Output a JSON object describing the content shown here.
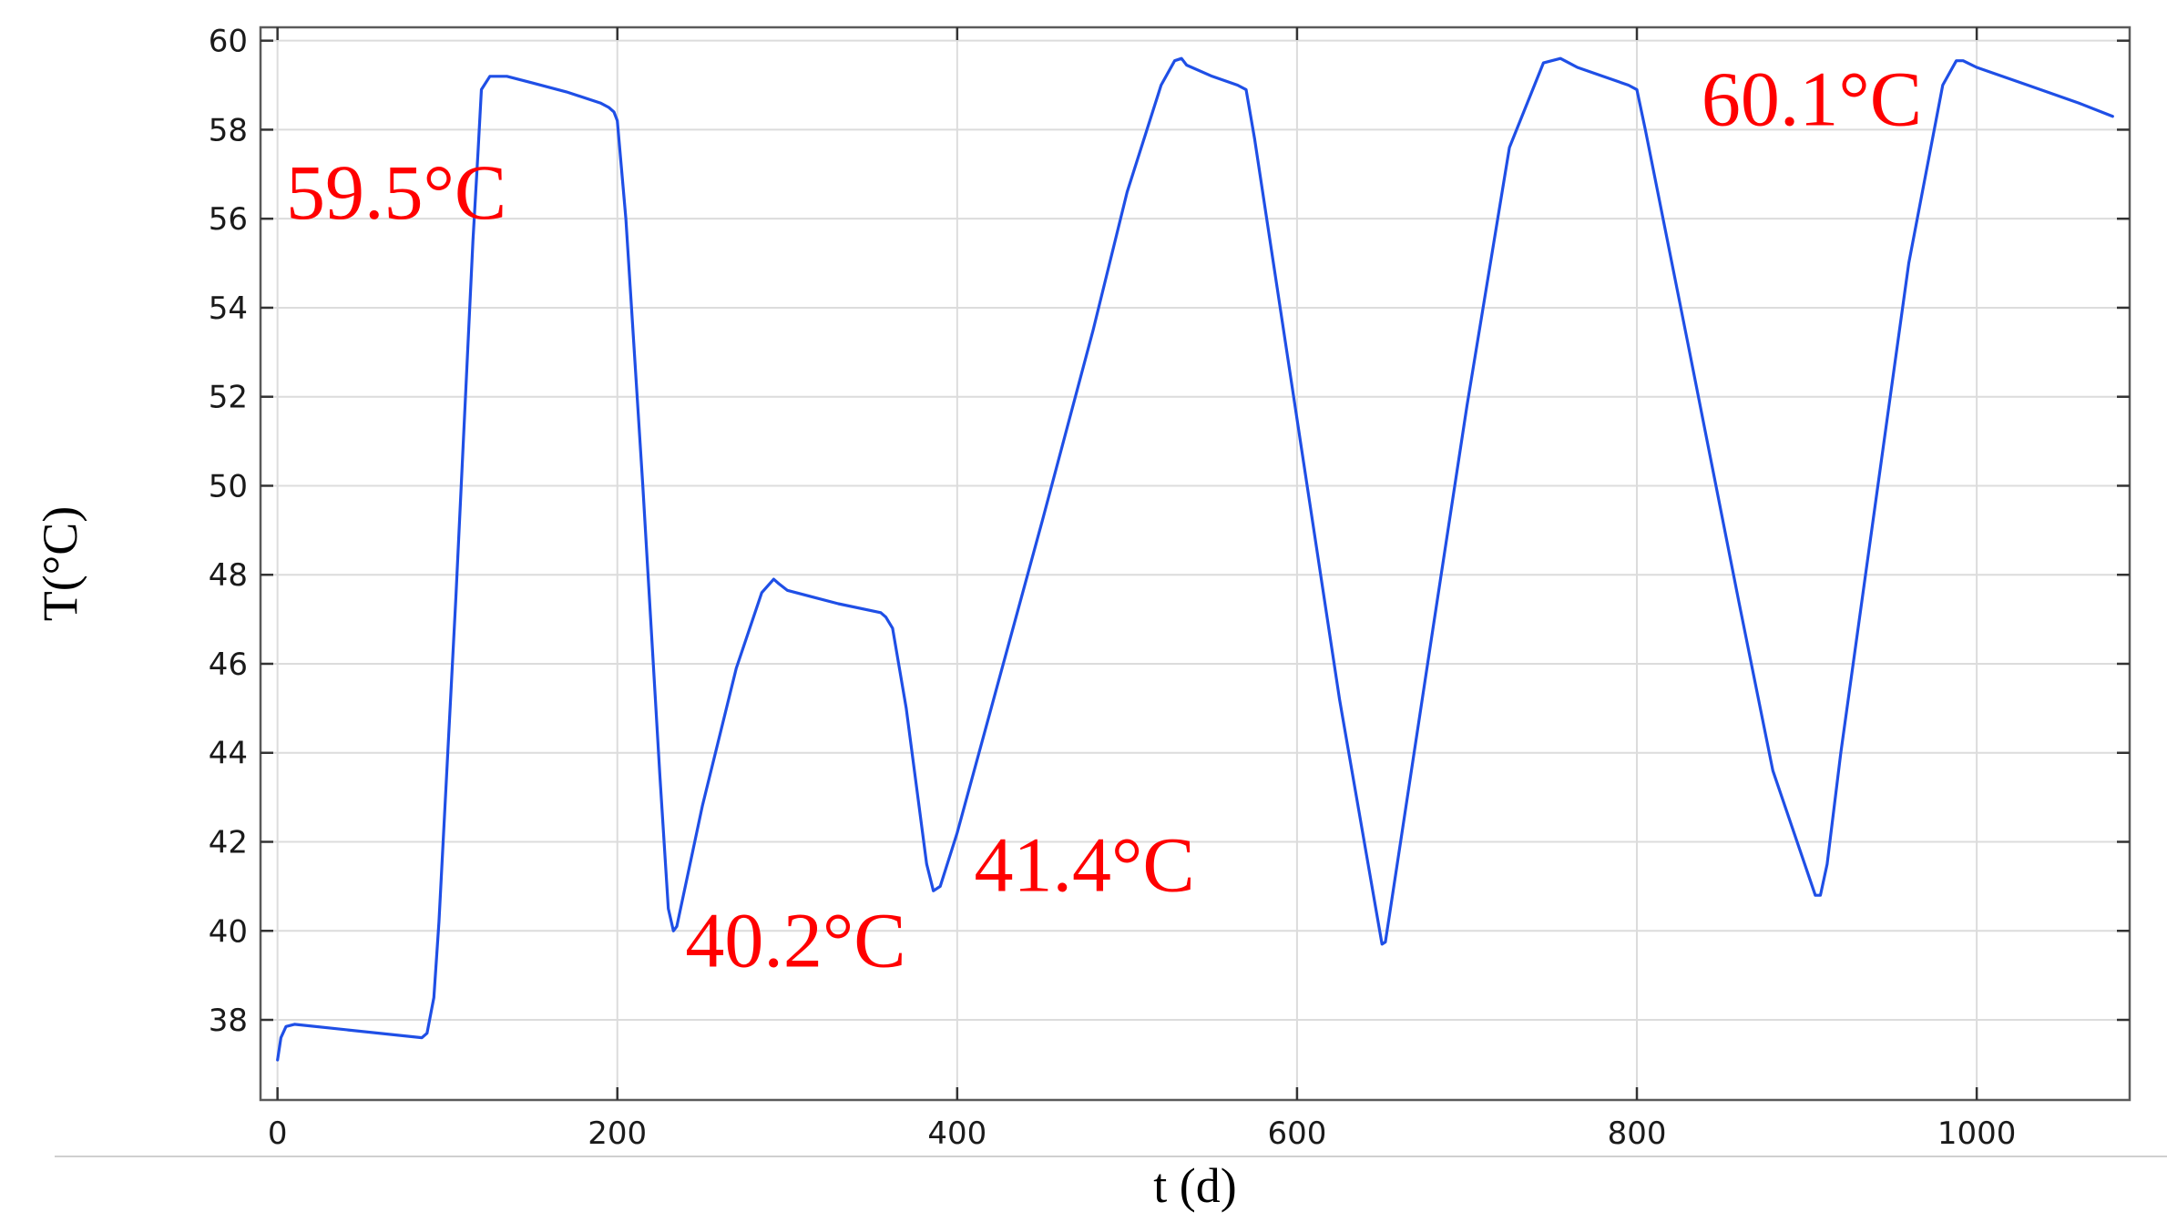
{
  "chart_data": {
    "type": "line",
    "title": "",
    "xlabel": "t (d)",
    "ylabel": "T(°C)",
    "xlim": [
      -10,
      1090
    ],
    "ylim": [
      36.2,
      60.3
    ],
    "grid": true,
    "x_ticks": [
      0,
      200,
      400,
      600,
      800,
      1000
    ],
    "y_ticks": [
      38,
      40,
      42,
      44,
      46,
      48,
      50,
      52,
      54,
      56,
      58,
      60
    ],
    "series": [
      {
        "name": "",
        "color": "#1f4fe6",
        "x": [
          0,
          2,
          5,
          10,
          85,
          88,
          92,
          95,
          105,
          115,
          118,
          120,
          125,
          135,
          150,
          170,
          190,
          195,
          198,
          200,
          205,
          215,
          225,
          230,
          233,
          235,
          250,
          270,
          285,
          292,
          295,
          300,
          330,
          355,
          358,
          362,
          370,
          382,
          386,
          390,
          400,
          420,
          450,
          480,
          500,
          520,
          528,
          532,
          535,
          550,
          565,
          570,
          575,
          600,
          625,
          650,
          652,
          655,
          680,
          700,
          725,
          745,
          755,
          760,
          765,
          780,
          795,
          800,
          805,
          830,
          860,
          880,
          905,
          908,
          912,
          920,
          940,
          960,
          980,
          988,
          992,
          1000,
          1030,
          1060,
          1080
        ],
        "y": [
          37.1,
          37.6,
          37.85,
          37.9,
          37.6,
          37.7,
          38.5,
          40.2,
          47.5,
          55.5,
          57.5,
          58.9,
          59.2,
          59.2,
          59.05,
          58.85,
          58.6,
          58.5,
          58.4,
          58.2,
          56.0,
          50.0,
          43.5,
          40.5,
          40.0,
          40.1,
          42.8,
          45.9,
          47.6,
          47.9,
          47.8,
          47.65,
          47.35,
          47.15,
          47.05,
          46.8,
          45.0,
          41.5,
          40.9,
          41.0,
          42.2,
          45.0,
          49.2,
          53.5,
          56.6,
          59.0,
          59.55,
          59.6,
          59.45,
          59.2,
          59.0,
          58.9,
          57.8,
          51.5,
          45.2,
          39.7,
          39.75,
          40.5,
          46.8,
          51.8,
          57.6,
          59.5,
          59.6,
          59.5,
          59.4,
          59.2,
          59.0,
          58.9,
          58.0,
          53.2,
          47.4,
          43.6,
          40.8,
          40.8,
          41.5,
          44.0,
          49.5,
          55.0,
          59.0,
          59.55,
          59.55,
          59.4,
          59.0,
          58.6,
          58.3
        ]
      }
    ],
    "annotations": [
      {
        "text": "59.5°C",
        "color": "#ff0000",
        "x": 5,
        "y": 56.0
      },
      {
        "text": "40.2°C",
        "color": "#ff0000",
        "x": 240,
        "y": 39.2
      },
      {
        "text": "41.4°C",
        "color": "#ff0000",
        "x": 410,
        "y": 40.9
      },
      {
        "text": "60.1°C",
        "color": "#ff0000",
        "x": 838,
        "y": 58.1
      }
    ]
  }
}
